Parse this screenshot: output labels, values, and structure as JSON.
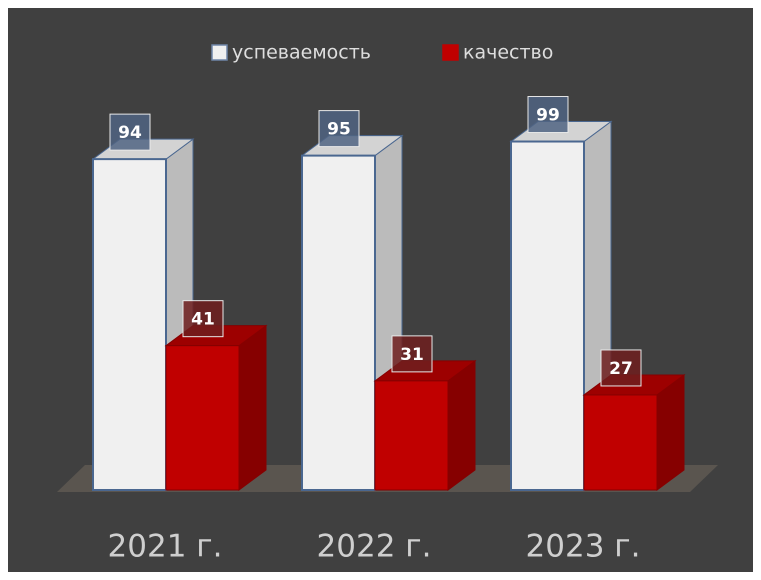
{
  "chart_data": {
    "type": "bar3d",
    "categories": [
      "2021 г.",
      "2022 г.",
      "2023 г."
    ],
    "series": [
      {
        "name": "успеваемость",
        "color": "#f0f0f0",
        "values": [
          94,
          95,
          99
        ]
      },
      {
        "name": "качество",
        "color": "#c00000",
        "values": [
          41,
          31,
          27
        ]
      }
    ],
    "legend": "top"
  }
}
